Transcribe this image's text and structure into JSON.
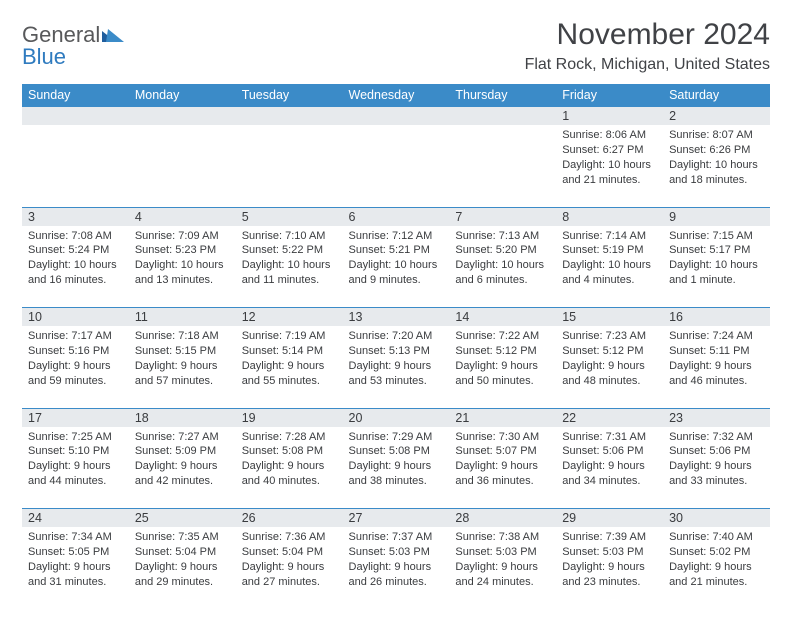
{
  "logo": {
    "line1": "General",
    "line2": "Blue"
  },
  "title": "November 2024",
  "location": "Flat Rock, Michigan, United States",
  "colors": {
    "header_bg": "#3b8bc8",
    "header_fg": "#ffffff",
    "daynum_bg": "#e7eaed",
    "row_border": "#3b8bc8",
    "text": "#3a3c3f",
    "logo_gray": "#58595b",
    "logo_blue": "#2f7bbf",
    "page_bg": "#ffffff"
  },
  "typography": {
    "title_fontsize": 30,
    "location_fontsize": 16,
    "header_fontsize": 12.5,
    "cell_fontsize": 11
  },
  "day_headers": [
    "Sunday",
    "Monday",
    "Tuesday",
    "Wednesday",
    "Thursday",
    "Friday",
    "Saturday"
  ],
  "weeks": [
    [
      {
        "n": "",
        "sunrise": "",
        "sunset": "",
        "daylight": ""
      },
      {
        "n": "",
        "sunrise": "",
        "sunset": "",
        "daylight": ""
      },
      {
        "n": "",
        "sunrise": "",
        "sunset": "",
        "daylight": ""
      },
      {
        "n": "",
        "sunrise": "",
        "sunset": "",
        "daylight": ""
      },
      {
        "n": "",
        "sunrise": "",
        "sunset": "",
        "daylight": ""
      },
      {
        "n": "1",
        "sunrise": "Sunrise: 8:06 AM",
        "sunset": "Sunset: 6:27 PM",
        "daylight": "Daylight: 10 hours and 21 minutes."
      },
      {
        "n": "2",
        "sunrise": "Sunrise: 8:07 AM",
        "sunset": "Sunset: 6:26 PM",
        "daylight": "Daylight: 10 hours and 18 minutes."
      }
    ],
    [
      {
        "n": "3",
        "sunrise": "Sunrise: 7:08 AM",
        "sunset": "Sunset: 5:24 PM",
        "daylight": "Daylight: 10 hours and 16 minutes."
      },
      {
        "n": "4",
        "sunrise": "Sunrise: 7:09 AM",
        "sunset": "Sunset: 5:23 PM",
        "daylight": "Daylight: 10 hours and 13 minutes."
      },
      {
        "n": "5",
        "sunrise": "Sunrise: 7:10 AM",
        "sunset": "Sunset: 5:22 PM",
        "daylight": "Daylight: 10 hours and 11 minutes."
      },
      {
        "n": "6",
        "sunrise": "Sunrise: 7:12 AM",
        "sunset": "Sunset: 5:21 PM",
        "daylight": "Daylight: 10 hours and 9 minutes."
      },
      {
        "n": "7",
        "sunrise": "Sunrise: 7:13 AM",
        "sunset": "Sunset: 5:20 PM",
        "daylight": "Daylight: 10 hours and 6 minutes."
      },
      {
        "n": "8",
        "sunrise": "Sunrise: 7:14 AM",
        "sunset": "Sunset: 5:19 PM",
        "daylight": "Daylight: 10 hours and 4 minutes."
      },
      {
        "n": "9",
        "sunrise": "Sunrise: 7:15 AM",
        "sunset": "Sunset: 5:17 PM",
        "daylight": "Daylight: 10 hours and 1 minute."
      }
    ],
    [
      {
        "n": "10",
        "sunrise": "Sunrise: 7:17 AM",
        "sunset": "Sunset: 5:16 PM",
        "daylight": "Daylight: 9 hours and 59 minutes."
      },
      {
        "n": "11",
        "sunrise": "Sunrise: 7:18 AM",
        "sunset": "Sunset: 5:15 PM",
        "daylight": "Daylight: 9 hours and 57 minutes."
      },
      {
        "n": "12",
        "sunrise": "Sunrise: 7:19 AM",
        "sunset": "Sunset: 5:14 PM",
        "daylight": "Daylight: 9 hours and 55 minutes."
      },
      {
        "n": "13",
        "sunrise": "Sunrise: 7:20 AM",
        "sunset": "Sunset: 5:13 PM",
        "daylight": "Daylight: 9 hours and 53 minutes."
      },
      {
        "n": "14",
        "sunrise": "Sunrise: 7:22 AM",
        "sunset": "Sunset: 5:12 PM",
        "daylight": "Daylight: 9 hours and 50 minutes."
      },
      {
        "n": "15",
        "sunrise": "Sunrise: 7:23 AM",
        "sunset": "Sunset: 5:12 PM",
        "daylight": "Daylight: 9 hours and 48 minutes."
      },
      {
        "n": "16",
        "sunrise": "Sunrise: 7:24 AM",
        "sunset": "Sunset: 5:11 PM",
        "daylight": "Daylight: 9 hours and 46 minutes."
      }
    ],
    [
      {
        "n": "17",
        "sunrise": "Sunrise: 7:25 AM",
        "sunset": "Sunset: 5:10 PM",
        "daylight": "Daylight: 9 hours and 44 minutes."
      },
      {
        "n": "18",
        "sunrise": "Sunrise: 7:27 AM",
        "sunset": "Sunset: 5:09 PM",
        "daylight": "Daylight: 9 hours and 42 minutes."
      },
      {
        "n": "19",
        "sunrise": "Sunrise: 7:28 AM",
        "sunset": "Sunset: 5:08 PM",
        "daylight": "Daylight: 9 hours and 40 minutes."
      },
      {
        "n": "20",
        "sunrise": "Sunrise: 7:29 AM",
        "sunset": "Sunset: 5:08 PM",
        "daylight": "Daylight: 9 hours and 38 minutes."
      },
      {
        "n": "21",
        "sunrise": "Sunrise: 7:30 AM",
        "sunset": "Sunset: 5:07 PM",
        "daylight": "Daylight: 9 hours and 36 minutes."
      },
      {
        "n": "22",
        "sunrise": "Sunrise: 7:31 AM",
        "sunset": "Sunset: 5:06 PM",
        "daylight": "Daylight: 9 hours and 34 minutes."
      },
      {
        "n": "23",
        "sunrise": "Sunrise: 7:32 AM",
        "sunset": "Sunset: 5:06 PM",
        "daylight": "Daylight: 9 hours and 33 minutes."
      }
    ],
    [
      {
        "n": "24",
        "sunrise": "Sunrise: 7:34 AM",
        "sunset": "Sunset: 5:05 PM",
        "daylight": "Daylight: 9 hours and 31 minutes."
      },
      {
        "n": "25",
        "sunrise": "Sunrise: 7:35 AM",
        "sunset": "Sunset: 5:04 PM",
        "daylight": "Daylight: 9 hours and 29 minutes."
      },
      {
        "n": "26",
        "sunrise": "Sunrise: 7:36 AM",
        "sunset": "Sunset: 5:04 PM",
        "daylight": "Daylight: 9 hours and 27 minutes."
      },
      {
        "n": "27",
        "sunrise": "Sunrise: 7:37 AM",
        "sunset": "Sunset: 5:03 PM",
        "daylight": "Daylight: 9 hours and 26 minutes."
      },
      {
        "n": "28",
        "sunrise": "Sunrise: 7:38 AM",
        "sunset": "Sunset: 5:03 PM",
        "daylight": "Daylight: 9 hours and 24 minutes."
      },
      {
        "n": "29",
        "sunrise": "Sunrise: 7:39 AM",
        "sunset": "Sunset: 5:03 PM",
        "daylight": "Daylight: 9 hours and 23 minutes."
      },
      {
        "n": "30",
        "sunrise": "Sunrise: 7:40 AM",
        "sunset": "Sunset: 5:02 PM",
        "daylight": "Daylight: 9 hours and 21 minutes."
      }
    ]
  ]
}
